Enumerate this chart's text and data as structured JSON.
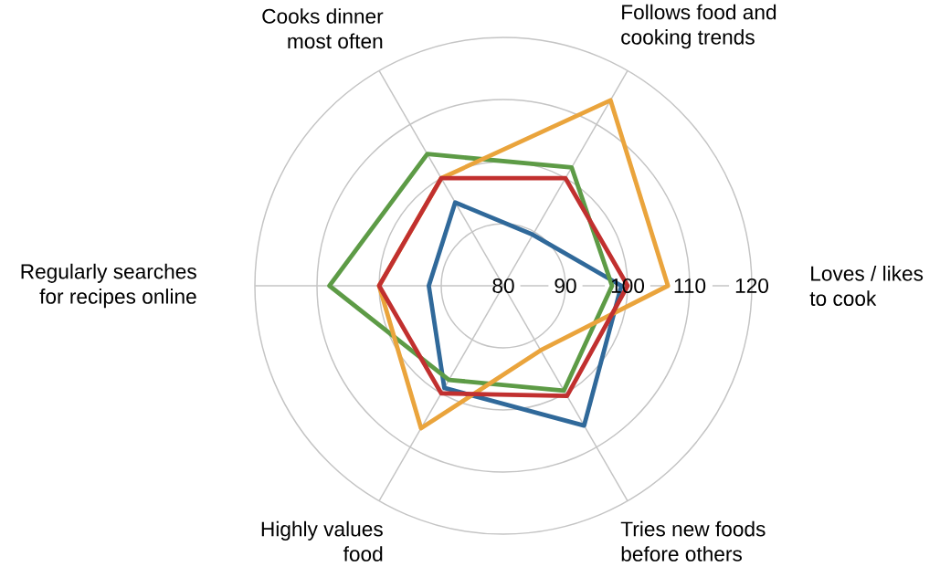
{
  "chart_data": {
    "type": "radar",
    "categories": [
      "Follows food and cooking trends",
      "Loves / likes to cook",
      "Tries new foods before others",
      "Highly values food",
      "Regularly searches for recipes online",
      "Cooks dinner most often"
    ],
    "series": [
      {
        "color": "#30699a",
        "values": [
          89.5,
          99,
          106,
          99,
          92,
          95.5
        ]
      },
      {
        "color": "#5d9b46",
        "values": [
          102,
          97.5,
          99.5,
          97.5,
          108,
          104.5
        ]
      },
      {
        "color": "#eaa43c",
        "values": [
          114.5,
          106.5,
          92,
          106.5,
          100,
          100
        ]
      },
      {
        "color": "#c1302f",
        "values": [
          100,
          100,
          100.5,
          100,
          100,
          100
        ]
      }
    ],
    "ylim": [
      80,
      120
    ],
    "yticks": [
      80,
      90,
      100,
      110,
      120
    ],
    "grid": true
  }
}
